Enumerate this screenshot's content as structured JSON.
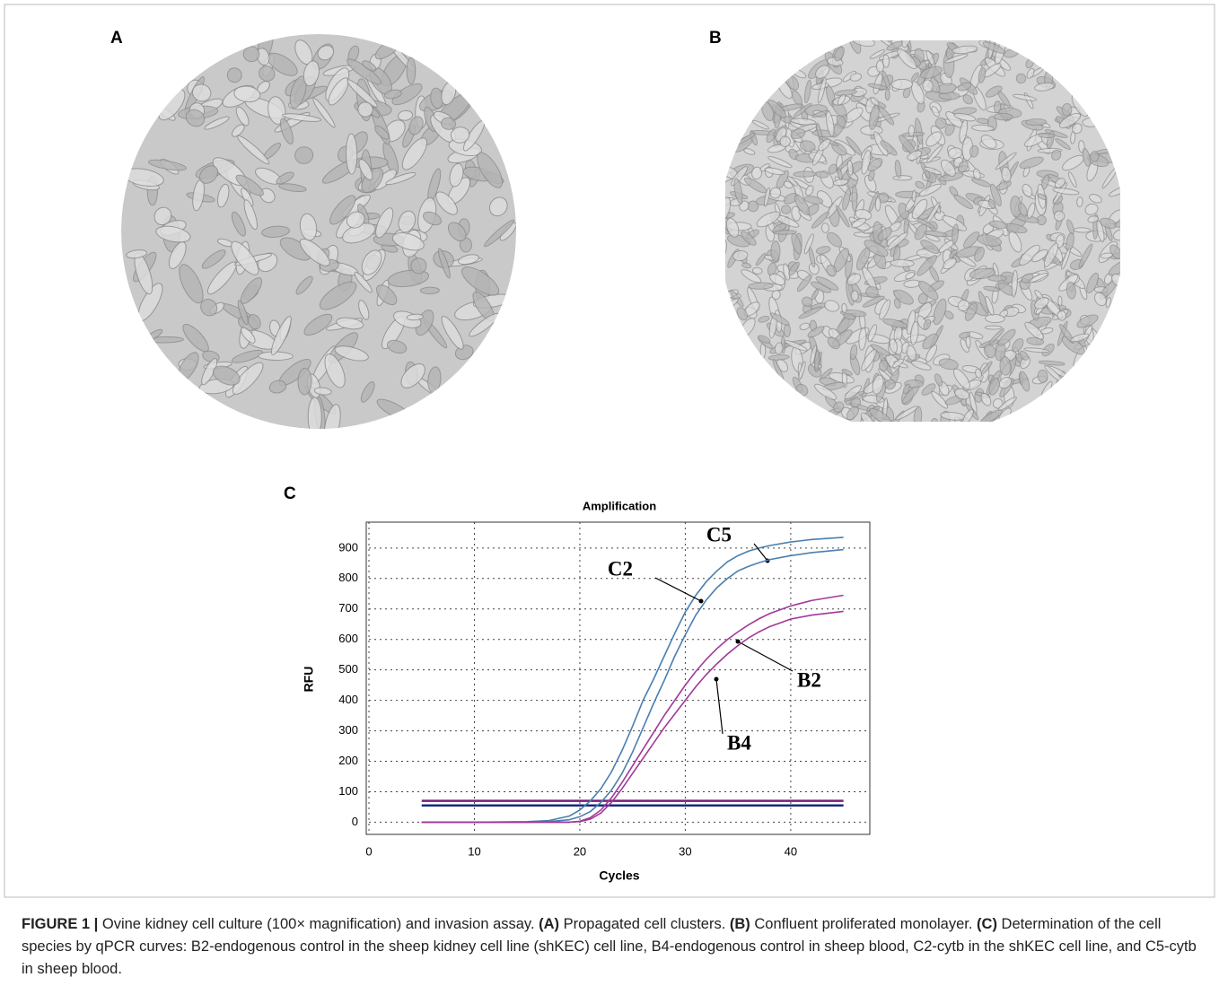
{
  "panels": {
    "a": "A",
    "b": "B",
    "c": "C"
  },
  "chart_data": {
    "type": "line",
    "title": "Amplification",
    "x_label": "Cycles",
    "y_label": "RFU",
    "x": [
      5,
      10,
      15,
      17,
      19,
      20,
      21,
      22,
      23,
      24,
      25,
      26,
      27,
      28,
      29,
      30,
      31,
      32,
      33,
      34,
      35,
      36,
      37,
      38,
      40,
      42,
      45
    ],
    "series": [
      {
        "name": "C5",
        "color": "#4a7fb0",
        "values": [
          0,
          0,
          2,
          5,
          20,
          40,
          70,
          110,
          165,
          235,
          315,
          400,
          470,
          545,
          620,
          690,
          745,
          790,
          825,
          855,
          875,
          890,
          900,
          908,
          920,
          928,
          935
        ]
      },
      {
        "name": "C2",
        "color": "#4a7fb0",
        "values": [
          0,
          0,
          0,
          2,
          8,
          18,
          35,
          65,
          105,
          160,
          230,
          310,
          390,
          465,
          545,
          615,
          680,
          730,
          770,
          800,
          825,
          840,
          852,
          862,
          875,
          885,
          895
        ]
      },
      {
        "name": "B2",
        "color": "#a0399a",
        "values": [
          0,
          0,
          0,
          0,
          0,
          3,
          15,
          40,
          80,
          130,
          185,
          240,
          295,
          350,
          400,
          450,
          495,
          535,
          570,
          600,
          625,
          648,
          668,
          685,
          710,
          728,
          745
        ]
      },
      {
        "name": "B4",
        "color": "#a0399a",
        "values": [
          0,
          0,
          0,
          0,
          0,
          2,
          10,
          30,
          65,
          110,
          160,
          210,
          260,
          310,
          355,
          400,
          445,
          485,
          520,
          552,
          580,
          605,
          625,
          642,
          667,
          680,
          692
        ]
      }
    ],
    "threshold_lines": [
      {
        "value": 70,
        "color": "#7a1f7a"
      },
      {
        "value": 55,
        "color": "#1a2a7e"
      }
    ],
    "xlim": [
      0,
      47.5
    ],
    "ylim": [
      -40,
      985
    ],
    "xticks": [
      0,
      10,
      20,
      30,
      40
    ],
    "yticks": [
      0,
      100,
      200,
      300,
      400,
      500,
      600,
      700,
      800,
      900
    ],
    "grid": true
  },
  "caption": {
    "label": "FIGURE 1 |",
    "runs": [
      {
        "text": " Ovine kidney cell culture (100× magnification) and invasion assay. ",
        "bold": false
      },
      {
        "text": "(A)",
        "bold": true
      },
      {
        "text": " Propagated cell clusters. ",
        "bold": false
      },
      {
        "text": "(B)",
        "bold": true
      },
      {
        "text": " Confluent proliferated monolayer. ",
        "bold": false
      },
      {
        "text": "(C)",
        "bold": true
      },
      {
        "text": " Determination of the cell species by qPCR curves: B2-endogenous control in the sheep kidney cell line (shKEC) cell line, B4-endogenous control in sheep blood, C2-cytb in the shKEC cell line, and C5-cytb in sheep blood.",
        "bold": false
      }
    ]
  }
}
